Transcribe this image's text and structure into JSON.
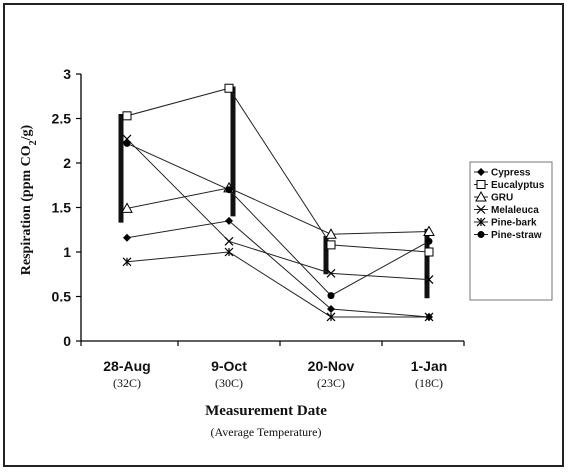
{
  "chart_data": {
    "type": "line",
    "title": "",
    "xlabel": "Measurement Date",
    "xlabel_sub": "(Average Temperature)",
    "ylabel_main": "Respiration (ppm CO",
    "ylabel_sub": "2",
    "ylabel_tail": "/g)",
    "categories": [
      "28-Aug",
      "9-Oct",
      "20-Nov",
      "1-Jan"
    ],
    "category_temps": [
      "(32C)",
      "(30C)",
      "(23C)",
      "(18C)"
    ],
    "ylim": [
      0,
      3
    ],
    "yticks": [
      "0",
      "0.5",
      "1",
      "1.5",
      "2",
      "2.5",
      "3"
    ],
    "grid": false,
    "legend_position": "right",
    "series": [
      {
        "name": "Cypress",
        "marker": "diamond",
        "values": [
          1.16,
          1.35,
          0.36,
          0.27
        ]
      },
      {
        "name": "Eucalyptus",
        "marker": "square-open",
        "values": [
          2.53,
          2.84,
          1.08,
          1.0
        ]
      },
      {
        "name": "GRU",
        "marker": "triangle-open",
        "values": [
          1.49,
          1.72,
          1.2,
          1.23
        ]
      },
      {
        "name": "Melaleuca",
        "marker": "x",
        "values": [
          2.27,
          1.12,
          0.76,
          0.69
        ]
      },
      {
        "name": "Pine-bark",
        "marker": "asterisk",
        "values": [
          0.89,
          1.0,
          0.27,
          0.27
        ]
      },
      {
        "name": "Pine-straw",
        "marker": "circle",
        "values": [
          2.22,
          1.7,
          0.51,
          1.12
        ]
      }
    ],
    "error_bars": [
      {
        "category": "28-Aug",
        "low": 1.33,
        "high": 2.55
      },
      {
        "category": "9-Oct",
        "low": 1.4,
        "high": 2.86
      },
      {
        "category": "20-Nov",
        "low": 0.75,
        "high": 1.18
      },
      {
        "category": "1-Jan",
        "low": 0.48,
        "high": 1.26
      }
    ],
    "colors": {
      "line": "#222222",
      "bar": "#111111"
    }
  }
}
